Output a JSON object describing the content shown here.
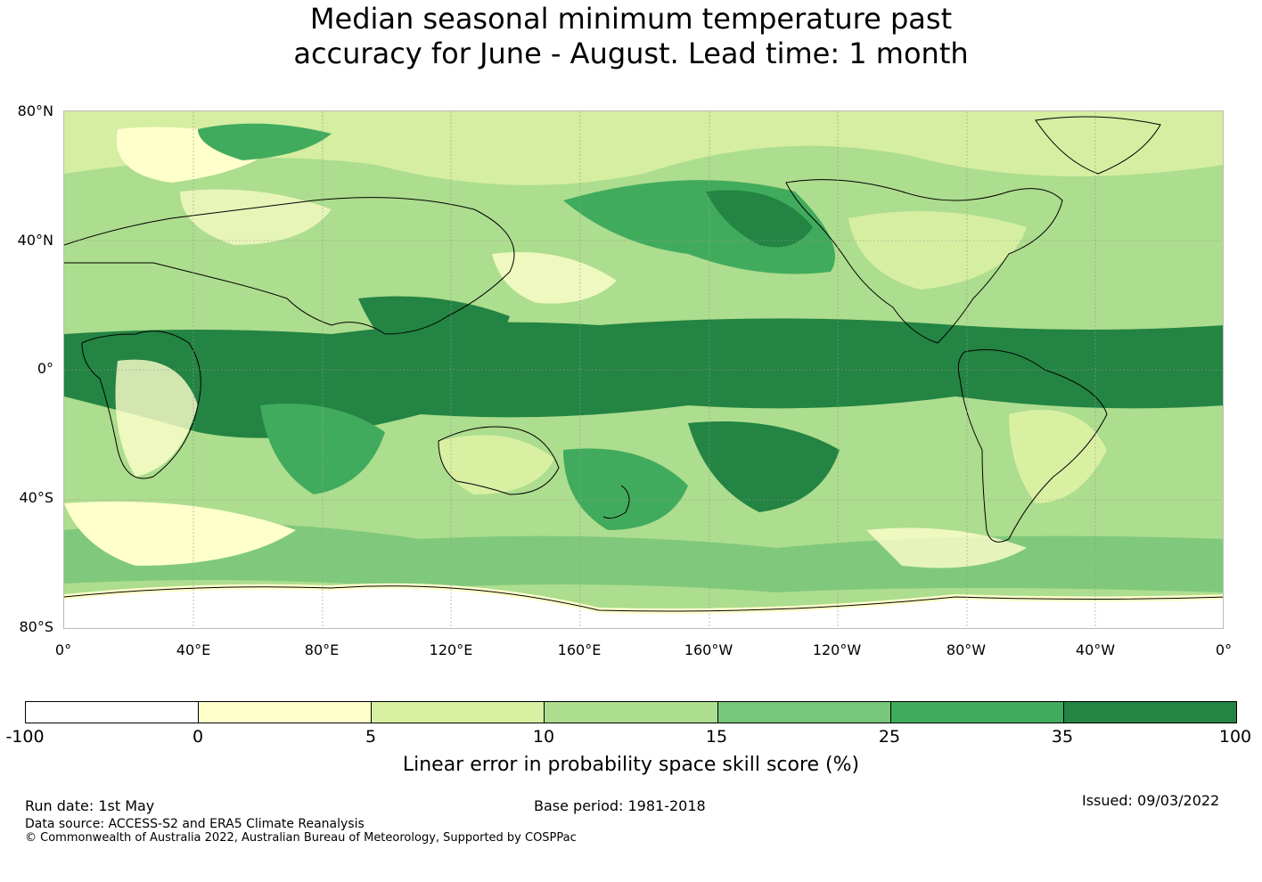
{
  "title": {
    "line1": "Median seasonal minimum temperature past",
    "line2": "accuracy for June - August. Lead time: 1 month"
  },
  "map": {
    "lat_labels": [
      "80°N",
      "40°N",
      "0°",
      "40°S",
      "80°S"
    ],
    "lon_labels": [
      "0°",
      "40°E",
      "80°E",
      "120°E",
      "160°E",
      "160°W",
      "120°W",
      "80°W",
      "40°W",
      "0°"
    ],
    "colors": {
      "white": "#ffffff",
      "pale_yellow": "#ffffcc",
      "light_green": "#d9f0a3",
      "green_1": "#addd8e",
      "green_2": "#78c679",
      "green_3": "#41ab5d",
      "dark_green": "#238443",
      "coastline": "#000000",
      "grid": "#999999"
    }
  },
  "colorbar": {
    "ticks": [
      "-100",
      "0",
      "5",
      "10",
      "15",
      "25",
      "35",
      "100"
    ],
    "colors": [
      "#ffffff",
      "#ffffcc",
      "#d9f0a3",
      "#addd8e",
      "#78c679",
      "#41ab5d",
      "#238443"
    ],
    "label": "Linear error in probability space skill score (%)"
  },
  "footer": {
    "run_date": "Run date: 1st May",
    "base_period": "Base period: 1981-2018",
    "issued": "Issued: 09/03/2022",
    "data_source": "Data source: ACCESS-S2 and ERA5 Climate Reanalysis",
    "copyright": "© Commonwealth of Australia 2022, Australian Bureau of Meteorology, Supported by COSPPac"
  }
}
